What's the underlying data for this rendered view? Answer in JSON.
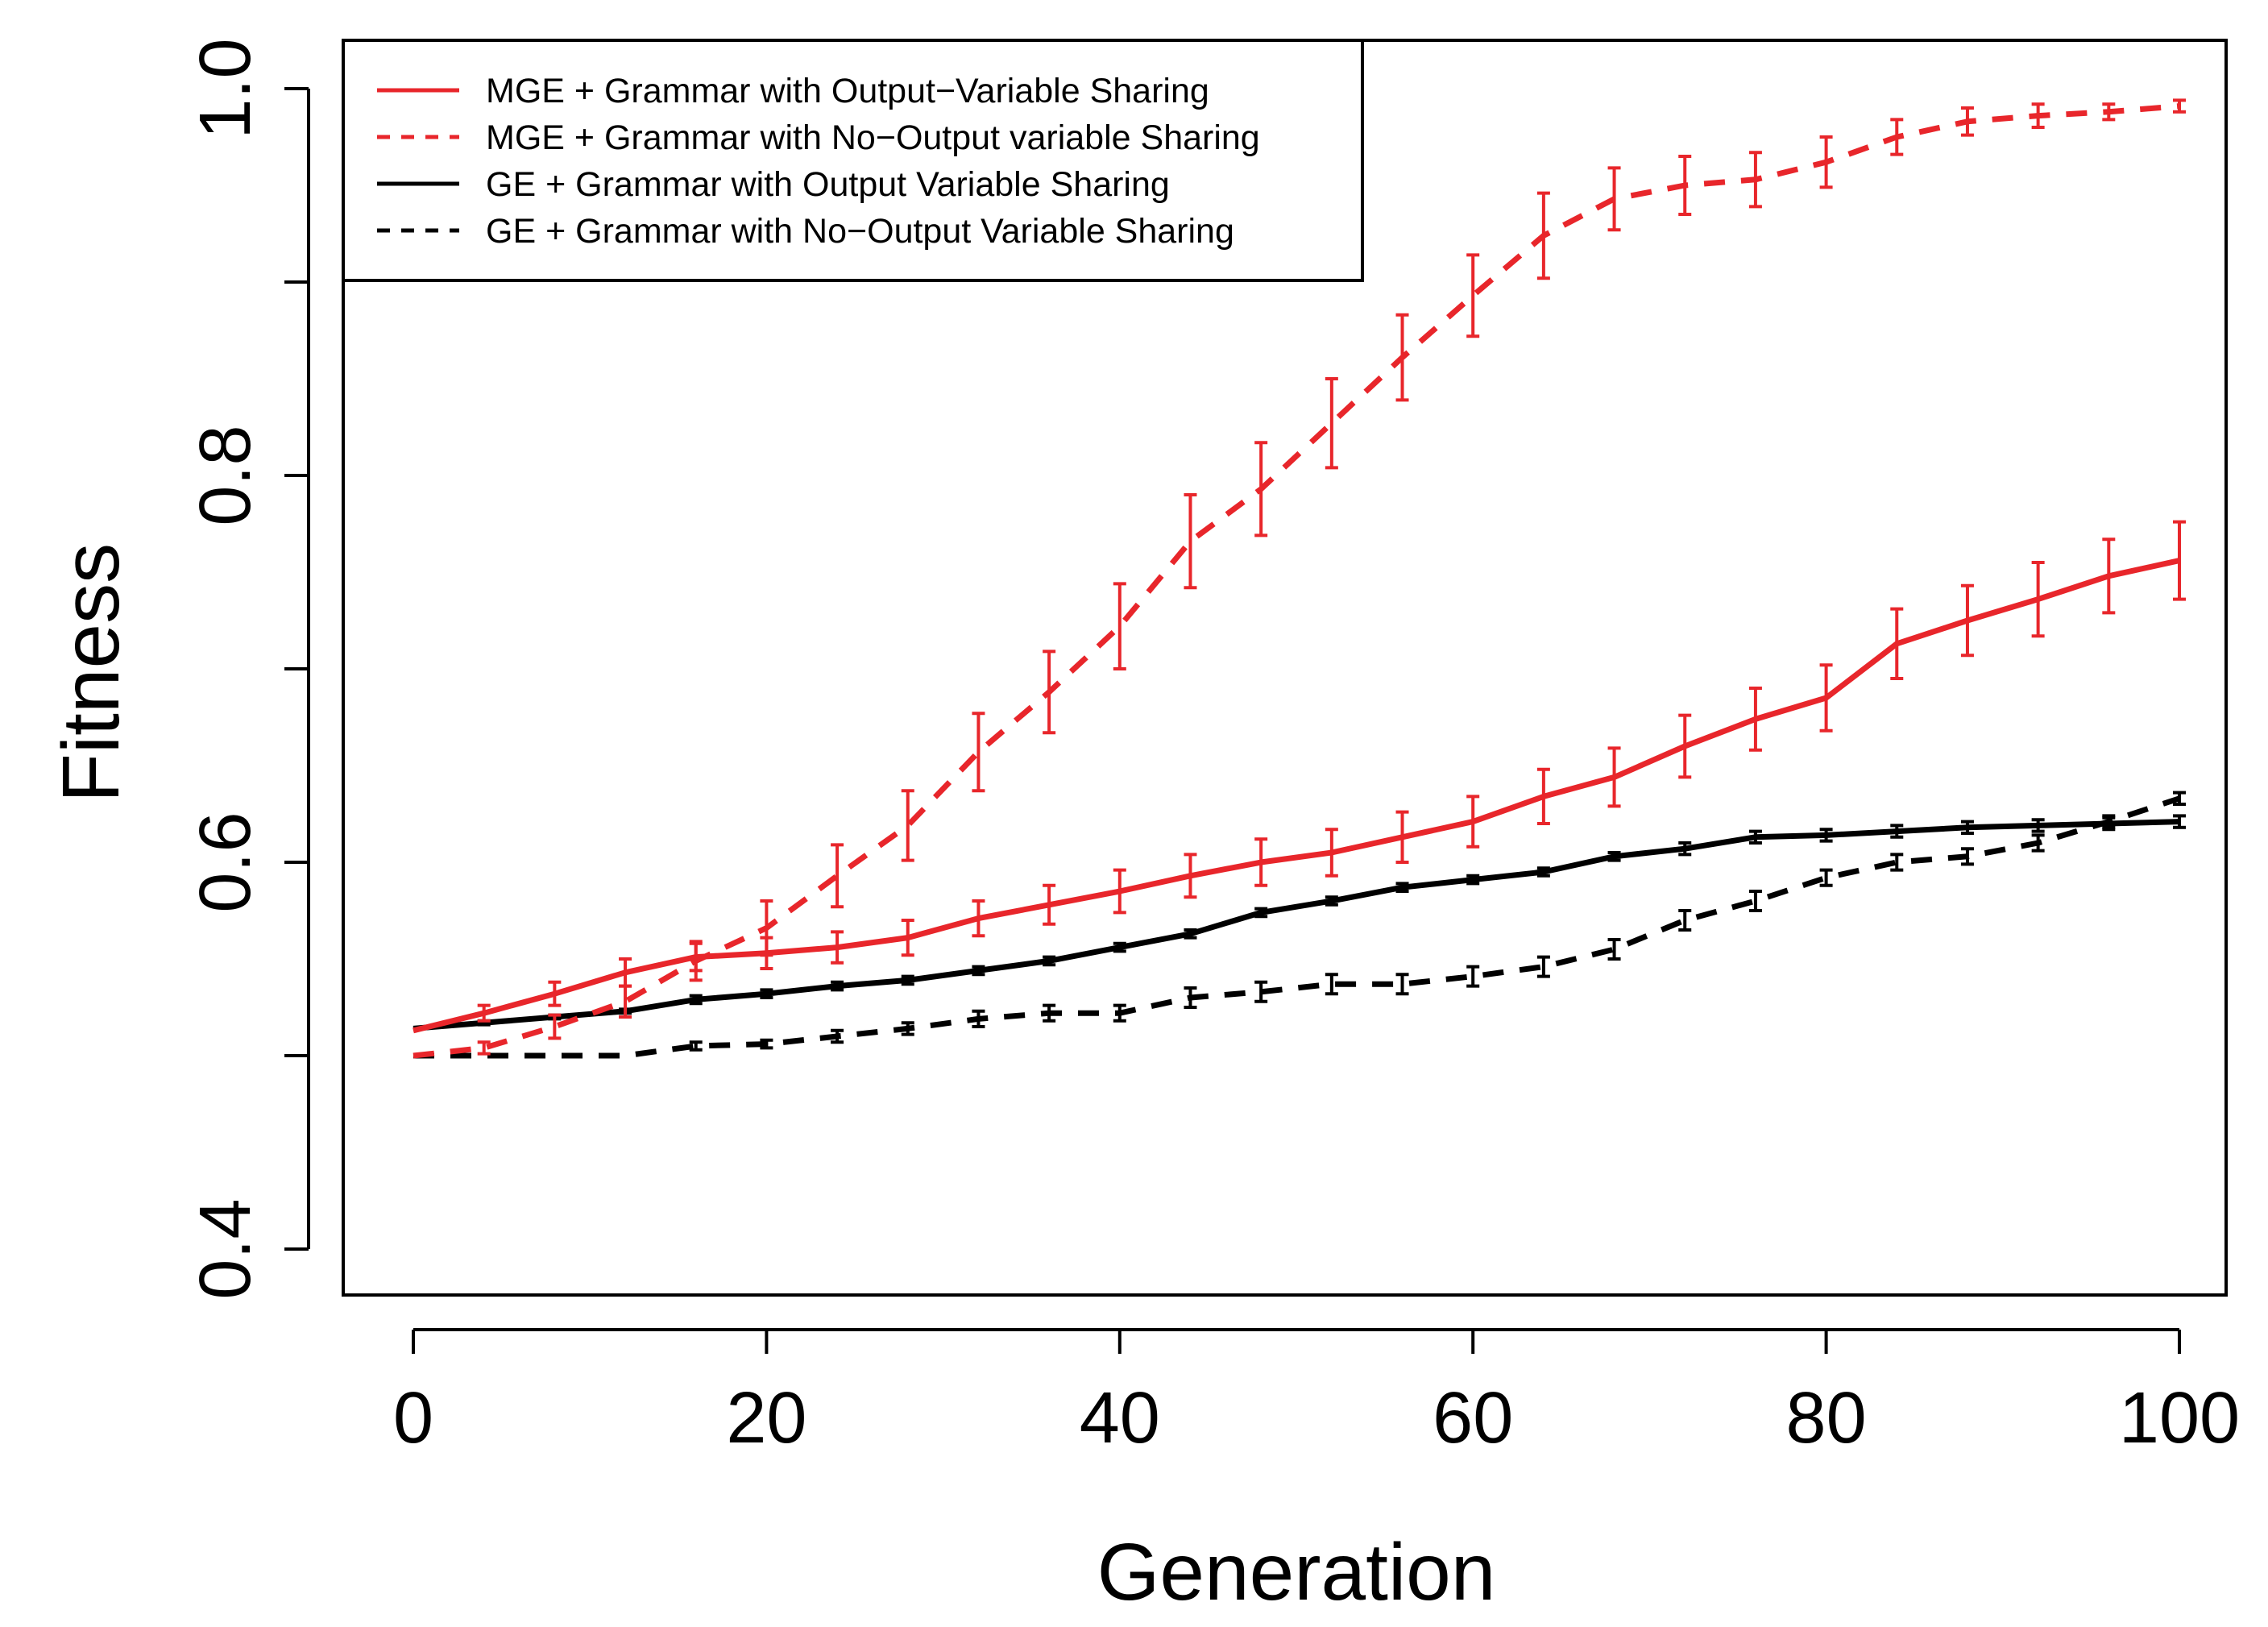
{
  "chart_data": {
    "type": "line",
    "title": "",
    "xlabel": "Generation",
    "ylabel": "Fitness",
    "xlim": [
      0,
      100
    ],
    "ylim": [
      0.4,
      1.0
    ],
    "xticks": [
      "0",
      "20",
      "40",
      "60",
      "80",
      "100"
    ],
    "yticks": [
      "0.4",
      "0.6",
      "0.8",
      "1.0"
    ],
    "x": [
      0,
      4,
      8,
      12,
      16,
      20,
      24,
      28,
      32,
      36,
      40,
      44,
      48,
      52,
      56,
      60,
      64,
      68,
      72,
      76,
      80,
      84,
      88,
      92,
      96,
      100
    ],
    "series": [
      {
        "name": "MGE + Grammar with Output−Variable Sharing",
        "color": "#e8262b",
        "dash": "solid",
        "values": [
          0.513,
          0.522,
          0.532,
          0.543,
          0.551,
          0.553,
          0.556,
          0.561,
          0.571,
          0.578,
          0.585,
          0.593,
          0.6,
          0.605,
          0.613,
          0.621,
          0.634,
          0.644,
          0.66,
          0.674,
          0.685,
          0.713,
          0.725,
          0.736,
          0.748,
          0.756
        ],
        "err": [
          0.0,
          0.004,
          0.006,
          0.007,
          0.007,
          0.008,
          0.008,
          0.009,
          0.009,
          0.01,
          0.011,
          0.011,
          0.012,
          0.012,
          0.013,
          0.013,
          0.014,
          0.015,
          0.016,
          0.016,
          0.017,
          0.018,
          0.018,
          0.019,
          0.019,
          0.02
        ]
      },
      {
        "name": "MGE + Grammar with No−Output variable Sharing",
        "color": "#e8262b",
        "dash": "dashed",
        "values": [
          0.5,
          0.504,
          0.515,
          0.528,
          0.549,
          0.566,
          0.593,
          0.619,
          0.657,
          0.688,
          0.722,
          0.766,
          0.793,
          0.827,
          0.861,
          0.893,
          0.924,
          0.943,
          0.95,
          0.953,
          0.962,
          0.975,
          0.983,
          0.986,
          0.988,
          0.991
        ],
        "err": [
          0.0,
          0.003,
          0.006,
          0.008,
          0.01,
          0.014,
          0.016,
          0.018,
          0.02,
          0.021,
          0.022,
          0.024,
          0.024,
          0.023,
          0.022,
          0.021,
          0.022,
          0.016,
          0.015,
          0.014,
          0.013,
          0.009,
          0.007,
          0.006,
          0.004,
          0.003
        ]
      },
      {
        "name": "GE + Grammar with Output Variable Sharing",
        "color": "#000000",
        "dash": "solid",
        "values": [
          0.514,
          0.517,
          0.52,
          0.523,
          0.529,
          0.532,
          0.536,
          0.539,
          0.544,
          0.549,
          0.556,
          0.563,
          0.574,
          0.58,
          0.587,
          0.591,
          0.595,
          0.603,
          0.607,
          0.613,
          0.614,
          0.616,
          0.618,
          0.619,
          0.62,
          0.621
        ],
        "err": [
          0.0,
          0.001,
          0.001,
          0.001,
          0.002,
          0.002,
          0.002,
          0.002,
          0.002,
          0.002,
          0.002,
          0.002,
          0.002,
          0.002,
          0.002,
          0.002,
          0.002,
          0.002,
          0.003,
          0.003,
          0.003,
          0.003,
          0.003,
          0.003,
          0.003,
          0.003
        ]
      },
      {
        "name": "GE + Grammar with No−Output Variable Sharing",
        "color": "#000000",
        "dash": "dashed",
        "values": [
          0.5,
          0.5,
          0.5,
          0.5,
          0.505,
          0.506,
          0.51,
          0.514,
          0.519,
          0.522,
          0.522,
          0.53,
          0.533,
          0.537,
          0.537,
          0.541,
          0.546,
          0.555,
          0.57,
          0.58,
          0.592,
          0.6,
          0.603,
          0.61,
          0.621,
          0.633
        ],
        "err": [
          0.0,
          0.0,
          0.0,
          0.0,
          0.002,
          0.002,
          0.003,
          0.003,
          0.004,
          0.004,
          0.004,
          0.005,
          0.005,
          0.005,
          0.005,
          0.005,
          0.005,
          0.005,
          0.005,
          0.005,
          0.004,
          0.004,
          0.004,
          0.004,
          0.003,
          0.003
        ]
      }
    ],
    "legend_position": "top-left",
    "grid": false
  }
}
